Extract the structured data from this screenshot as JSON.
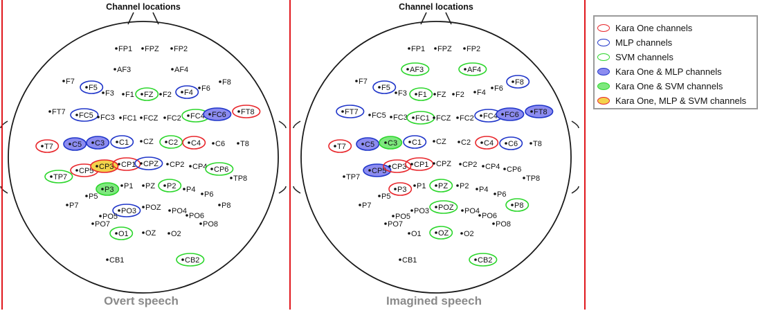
{
  "colors": {
    "kara_one": "#e8262b",
    "mlp": "#1f35c9",
    "svm": "#2bd62b",
    "mlp_fill": "#8c8cf0",
    "svm_fill": "#7ee87e",
    "all_fill": "#f3d34b",
    "divider": "#e0161b"
  },
  "legend": {
    "items": [
      {
        "key": "kara",
        "label": "Kara One channels",
        "border": "#e8262b",
        "fill": "#ffffff"
      },
      {
        "key": "mlp",
        "label": "MLP channels",
        "border": "#1f35c9",
        "fill": "#ffffff"
      },
      {
        "key": "svm",
        "label": "SVM channels",
        "border": "#2bd62b",
        "fill": "#ffffff"
      },
      {
        "key": "kara_mlp",
        "label": "Kara One & MLP channels",
        "border": "#1f35c9",
        "fill": "#8c8cf0"
      },
      {
        "key": "kara_svm",
        "label": "Kara One & SVM channels",
        "border": "#2bd62b",
        "fill": "#7ee87e"
      },
      {
        "key": "all",
        "label": "Kara One, MLP & SVM channels",
        "border": "#e8262b",
        "fill": "#f3d34b"
      }
    ]
  },
  "panels": [
    {
      "id": "overt",
      "title": "Channel locations",
      "caption": "Overt speech",
      "channels": [
        "FP1",
        "FPZ",
        "FP2",
        "AF3",
        "AF4",
        "F7",
        "F5",
        "F3",
        "F1",
        "FZ",
        "F2",
        "F4",
        "F6",
        "F8",
        "FT7",
        "FC5",
        "FC3",
        "FC1",
        "FCZ",
        "FC2",
        "FC4",
        "FC6",
        "FT8",
        "T7",
        "C5",
        "C3",
        "C1",
        "CZ",
        "C2",
        "C4",
        "C6",
        "T8",
        "TP7",
        "CP5",
        "CP3",
        "CP1",
        "CPZ",
        "CP2",
        "CP4",
        "CP6",
        "TP8",
        "P7",
        "P5",
        "P3",
        "P1",
        "PZ",
        "P2",
        "P4",
        "P6",
        "P8",
        "PO3",
        "PO5",
        "POZ",
        "PO4",
        "PO6",
        "PO7",
        "PO8",
        "O1",
        "OZ",
        "O2",
        "CB1",
        "CB2"
      ],
      "highlights": {
        "F5": "mlp",
        "F4": "mlp",
        "FZ": "svm",
        "FC5": "mlp",
        "FC4": "svm",
        "FC6": "kara_mlp",
        "FT8": "kara",
        "T7": "kara",
        "C5": "kara_mlp",
        "C3": "kara_mlp",
        "C1": "mlp",
        "C2": "svm",
        "C4": "kara",
        "TP7": "svm",
        "CP5": "kara",
        "CP3": "all",
        "CP1": "kara",
        "CPZ": "mlp",
        "CP6": "svm",
        "P3": "kara_svm",
        "P2": "svm",
        "PO3": "mlp",
        "O1": "svm",
        "CB2": "svm"
      }
    },
    {
      "id": "imagined",
      "title": "Channel locations",
      "caption": "Imagined speech",
      "channels": [
        "FP1",
        "FPZ",
        "FP2",
        "AF3",
        "AF4",
        "F7",
        "F5",
        "F3",
        "F1",
        "FZ",
        "F2",
        "F4",
        "F6",
        "F8",
        "FT7",
        "FC5",
        "FC3",
        "FC1",
        "FCZ",
        "FC2",
        "FC4",
        "FC6",
        "FT8",
        "T7",
        "C5",
        "C3",
        "C1",
        "CZ",
        "C2",
        "C4",
        "C6",
        "T8",
        "TP7",
        "CP5",
        "CP3",
        "CP1",
        "CPZ",
        "CP2",
        "CP4",
        "CP6",
        "TP8",
        "P7",
        "P5",
        "P3",
        "P1",
        "PZ",
        "P2",
        "P4",
        "P6",
        "P8",
        "PO3",
        "PO5",
        "POZ",
        "PO4",
        "PO6",
        "PO7",
        "PO8",
        "O1",
        "OZ",
        "O2",
        "CB1",
        "CB2"
      ],
      "highlights": {
        "AF3": "svm",
        "AF4": "svm",
        "F5": "mlp",
        "F1": "svm",
        "F8": "mlp",
        "FT7": "mlp",
        "FC1": "svm",
        "FC4": "mlp",
        "FC6": "kara_mlp",
        "FT8": "kara_mlp",
        "T7": "kara",
        "C5": "kara_mlp",
        "C3": "kara_svm",
        "C1": "mlp",
        "C4": "kara",
        "C6": "mlp",
        "CP5": "kara_mlp",
        "CP3": "kara",
        "CP1": "kara",
        "P3": "kara",
        "PZ": "svm",
        "P8": "svm",
        "POZ": "svm",
        "OZ": "svm",
        "CB2": "svm"
      }
    }
  ]
}
